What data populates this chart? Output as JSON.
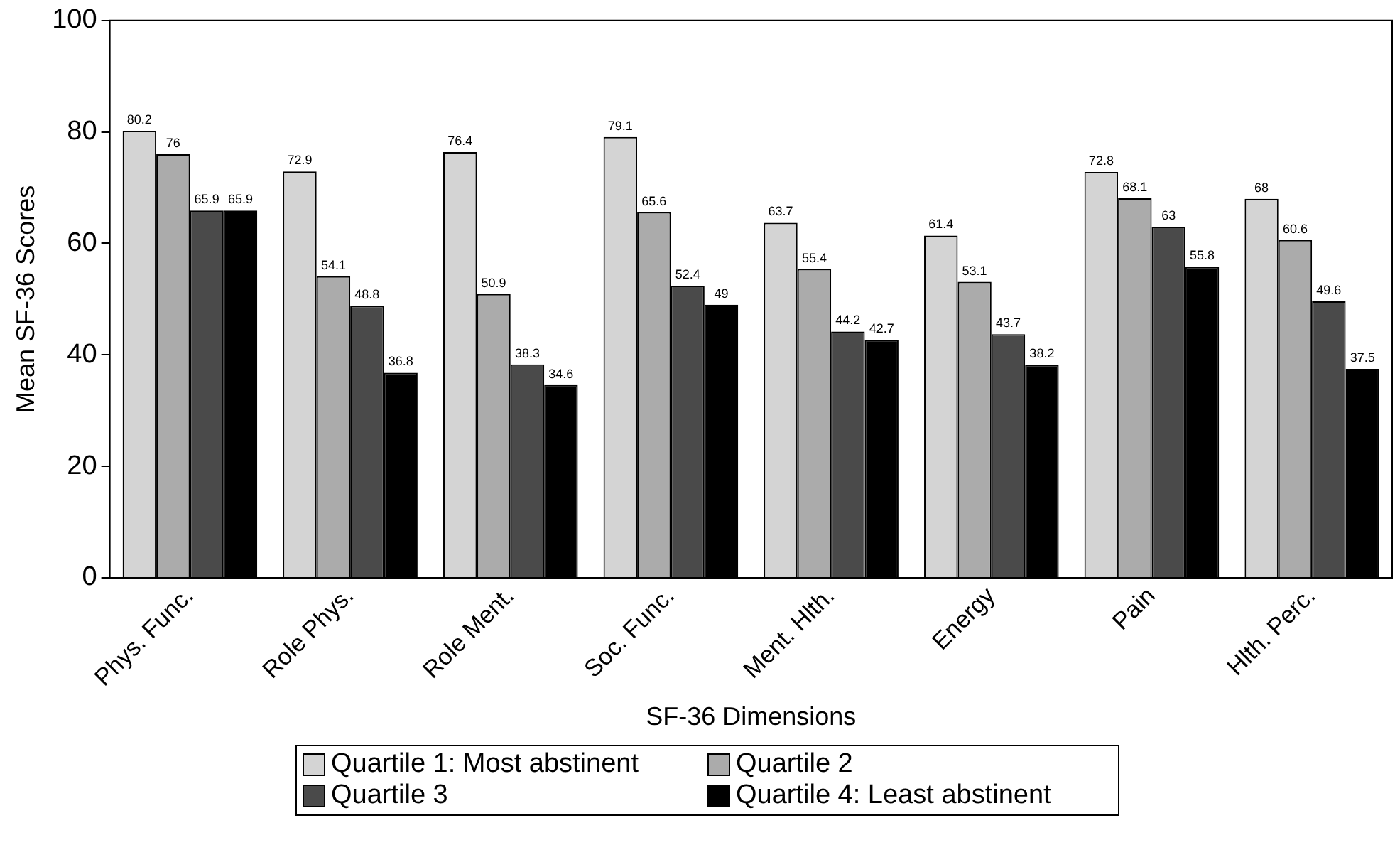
{
  "chart_data": {
    "type": "bar",
    "xlabel": "SF-36 Dimensions",
    "ylabel": "Mean SF-36 Scores",
    "categories": [
      "Phys. Func.",
      "Role Phys.",
      "Role Ment.",
      "Soc. Func.",
      "Ment. Hlth.",
      "Energy",
      "Pain",
      "Hlth. Perc."
    ],
    "series": [
      {
        "name": "Quartile 1: Most abstinent",
        "color": "#d4d4d4",
        "values": [
          80.2,
          72.9,
          76.4,
          79.1,
          63.7,
          61.4,
          72.8,
          68
        ]
      },
      {
        "name": "Quartile 2",
        "color": "#ababab",
        "values": [
          76,
          54.1,
          50.9,
          65.6,
          55.4,
          53.1,
          68.1,
          60.6
        ]
      },
      {
        "name": "Quartile 3",
        "color": "#4a4a4a",
        "values": [
          65.9,
          48.8,
          38.3,
          52.4,
          44.2,
          43.7,
          63,
          49.6
        ]
      },
      {
        "name": "Quartile 4: Least abstinent",
        "color": "#000000",
        "values": [
          65.9,
          36.8,
          34.6,
          49,
          42.7,
          38.2,
          55.8,
          37.5
        ]
      }
    ],
    "ylim": [
      0,
      100
    ],
    "yticks": [
      0,
      20,
      40,
      60,
      80,
      100
    ],
    "grid": false,
    "legend": "bottom",
    "data_labels": true
  }
}
